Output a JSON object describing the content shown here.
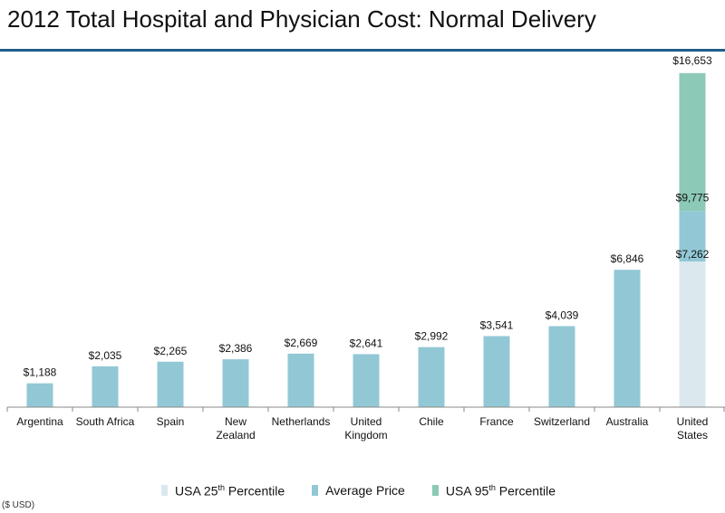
{
  "title": "2012 Total Hospital and Physician Cost: Normal Delivery",
  "note": "($ USD)",
  "legend": {
    "p25": {
      "pre": "USA 25",
      "sup": "th",
      "post": " Percentile",
      "color": "#dbe9ef"
    },
    "avg": {
      "pre": "Average Price",
      "sup": "",
      "post": "",
      "color": "#92c8d5"
    },
    "p95": {
      "pre": "USA  95",
      "sup": "th",
      "post": " Percentile",
      "color": "#8cc9b7"
    }
  },
  "chart_data": {
    "type": "bar",
    "ylim": [
      0,
      17500
    ],
    "categories": [
      {
        "label": [
          "Argentina"
        ],
        "value": 1188,
        "value_label": "$1,188"
      },
      {
        "label": [
          "South Africa"
        ],
        "value": 2035,
        "value_label": "$2,035"
      },
      {
        "label": [
          "Spain"
        ],
        "value": 2265,
        "value_label": "$2,265"
      },
      {
        "label": [
          "New",
          "Zealand"
        ],
        "value": 2386,
        "value_label": "$2,386"
      },
      {
        "label": [
          "Netherlands"
        ],
        "value": 2669,
        "value_label": "$2,669"
      },
      {
        "label": [
          "United",
          "Kingdom"
        ],
        "value": 2641,
        "value_label": "$2,641"
      },
      {
        "label": [
          "Chile"
        ],
        "value": 2992,
        "value_label": "$2,992"
      },
      {
        "label": [
          "France"
        ],
        "value": 3541,
        "value_label": "$3,541"
      },
      {
        "label": [
          "Switzerland"
        ],
        "value": 4039,
        "value_label": "$4,039"
      },
      {
        "label": [
          "Australia"
        ],
        "value": 6846,
        "value_label": "$6,846"
      },
      {
        "label": [
          "United",
          "States"
        ],
        "stacked": [
          {
            "series": "p25",
            "value": 7262,
            "value_label": "$7,262"
          },
          {
            "series": "avg",
            "value": 9775,
            "value_label": "$9,775"
          },
          {
            "series": "p95",
            "value": 16653,
            "value_label": "$16,653"
          }
        ]
      }
    ]
  }
}
